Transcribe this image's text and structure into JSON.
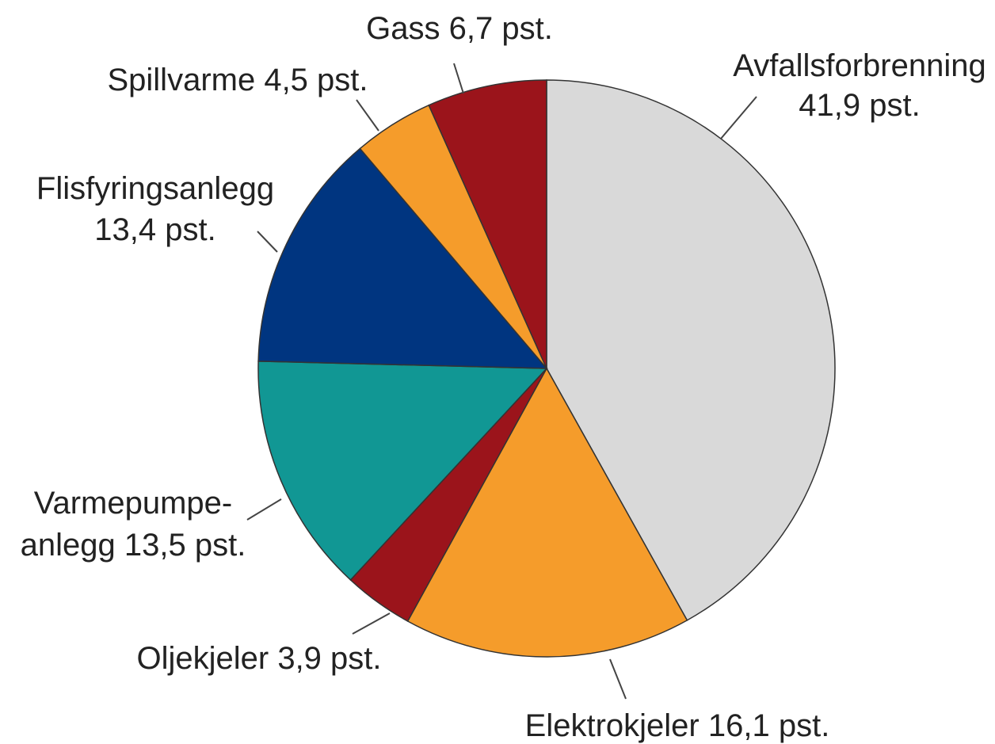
{
  "chart_data": {
    "type": "pie",
    "values": [
      41.9,
      16.1,
      3.9,
      13.5,
      13.4,
      4.5,
      6.7
    ],
    "value_labels": [
      "Avfallsforbrenning\n41,9 pst.",
      "Elektrokjeler 16,1 pst.",
      "Oljekjeler 3,9 pst.",
      "Varmepumpe-\nanlegg 13,5 pst.",
      "Flisfyringsanlegg\n13,4 pst.",
      "Spillvarme 4,5 pst.",
      "Gass 6,7 pst."
    ],
    "colors": [
      "#d9d9d9",
      "#f59c2b",
      "#9b141b",
      "#119794",
      "#003580",
      "#f59c2b",
      "#9b141b"
    ]
  }
}
